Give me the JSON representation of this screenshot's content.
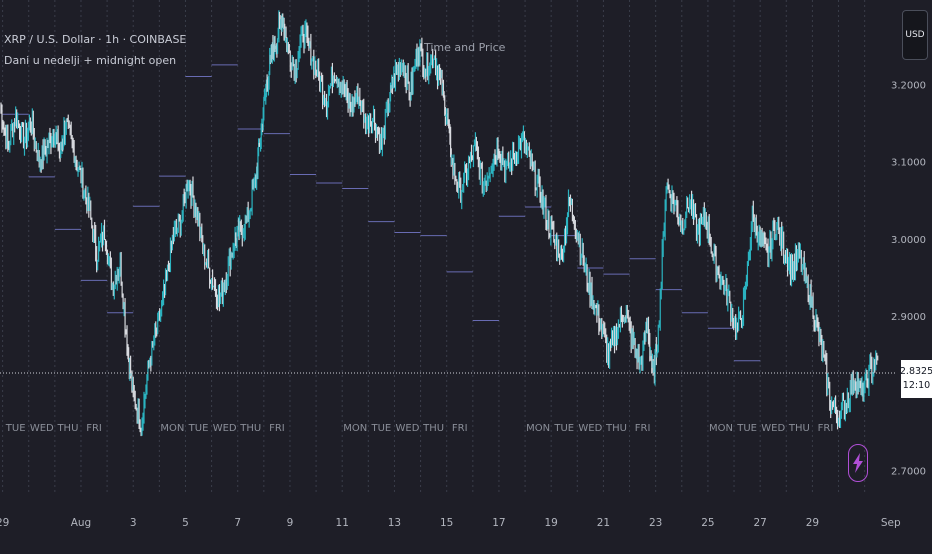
{
  "header": {
    "symbol": "XRP / U.S. Dollar · 1h · COINBASE",
    "indicator": "Dani u nedelji + midnight open",
    "annotation": "Time and Price"
  },
  "currency_label": "USD",
  "last_price": "2.8325",
  "countdown": "12:10",
  "colors": {
    "background": "#1e1e27",
    "candle": "#2bb3c0",
    "candle_alt": "#d9dbe0",
    "midnight_line": "#7b7fd6",
    "grid": "#3a3d4a",
    "price_line": "#d0d2d8",
    "bolt": "#b04fd6"
  },
  "icons": {
    "alert": "lightning-bolt-icon"
  },
  "chart_data": {
    "type": "line",
    "title": "",
    "xlabel": "",
    "ylabel": "",
    "ylim": [
      2.695,
      3.31
    ],
    "yticks": [
      "3.2000",
      "3.1000",
      "3.0000",
      "2.9000",
      "2.7000"
    ],
    "x_labels": [
      {
        "label": "29",
        "day": -3
      },
      {
        "label": "Aug",
        "day": 0
      },
      {
        "label": "3",
        "day": 2
      },
      {
        "label": "5",
        "day": 4
      },
      {
        "label": "7",
        "day": 6
      },
      {
        "label": "9",
        "day": 8
      },
      {
        "label": "11",
        "day": 10
      },
      {
        "label": "13",
        "day": 12
      },
      {
        "label": "15",
        "day": 14
      },
      {
        "label": "17",
        "day": 16
      },
      {
        "label": "19",
        "day": 18
      },
      {
        "label": "21",
        "day": 20
      },
      {
        "label": "23",
        "day": 22
      },
      {
        "label": "25",
        "day": 24
      },
      {
        "label": "27",
        "day": 26
      },
      {
        "label": "29",
        "day": 28
      },
      {
        "label": "Sep",
        "day": 31
      }
    ],
    "x_range": [
      -3.1,
      31.2
    ],
    "series": [
      {
        "x": [
          -3.1,
          -2.8,
          -2.5,
          -2.2,
          -1.9,
          -1.6,
          -1.3,
          -1.0,
          -0.8,
          -0.6,
          -0.3,
          0.0,
          0.3,
          0.6,
          0.9,
          1.2,
          1.5,
          1.8,
          2.0,
          2.3,
          2.6,
          2.9,
          3.2,
          3.5,
          3.8,
          4.1,
          4.4,
          4.7,
          5.0,
          5.3,
          5.6,
          5.9,
          6.1,
          6.4,
          6.7,
          6.9,
          7.1,
          7.3,
          7.5,
          7.7,
          7.9,
          8.2,
          8.5,
          8.8,
          9.1,
          9.4,
          9.7,
          10.0,
          10.3,
          10.6,
          10.9,
          11.2,
          11.5,
          11.8,
          12.0,
          12.3,
          12.6,
          12.9,
          13.2,
          13.5,
          13.8,
          14.0,
          14.2,
          14.5,
          14.8,
          15.1,
          15.4,
          15.7,
          16.0,
          16.3,
          16.6,
          16.9,
          17.2,
          17.5,
          17.8,
          18.1,
          18.4,
          18.7,
          19.0,
          19.3,
          19.6,
          19.9,
          20.2,
          20.5,
          20.8,
          21.1,
          21.4,
          21.7,
          21.9,
          22.1,
          22.4,
          22.7,
          23.0,
          23.3,
          23.6,
          23.9,
          24.2,
          24.5,
          24.8,
          25.1,
          25.4,
          25.7,
          26.0,
          26.3,
          26.6,
          26.9,
          27.2,
          27.5,
          27.8,
          28.1,
          28.4,
          28.7,
          29.0,
          29.3,
          29.6,
          29.9,
          30.2,
          30.5
        ],
        "values": [
          3.17,
          3.12,
          3.16,
          3.13,
          3.15,
          3.1,
          3.12,
          3.14,
          3.11,
          3.15,
          3.12,
          3.08,
          3.04,
          2.98,
          3.01,
          2.94,
          2.97,
          2.85,
          2.8,
          2.76,
          2.84,
          2.88,
          2.93,
          3.0,
          3.02,
          3.08,
          3.04,
          2.98,
          2.95,
          2.92,
          2.96,
          3.0,
          3.01,
          3.03,
          3.08,
          3.14,
          3.2,
          3.24,
          3.26,
          3.29,
          3.25,
          3.22,
          3.27,
          3.24,
          3.21,
          3.18,
          3.22,
          3.2,
          3.17,
          3.19,
          3.15,
          3.16,
          3.12,
          3.18,
          3.21,
          3.23,
          3.19,
          3.25,
          3.22,
          3.24,
          3.2,
          3.16,
          3.1,
          3.06,
          3.09,
          3.12,
          3.07,
          3.1,
          3.12,
          3.09,
          3.11,
          3.13,
          3.1,
          3.07,
          3.03,
          3.0,
          2.98,
          3.05,
          3.01,
          2.96,
          2.92,
          2.89,
          2.85,
          2.88,
          2.91,
          2.87,
          2.84,
          2.89,
          2.82,
          2.88,
          3.07,
          3.05,
          3.02,
          3.05,
          3.01,
          3.03,
          2.98,
          2.95,
          2.92,
          2.88,
          2.92,
          3.03,
          3.0,
          2.98,
          3.02,
          2.99,
          2.96,
          2.98,
          2.94,
          2.9,
          2.85,
          2.79,
          2.77,
          2.79,
          2.82,
          2.8,
          2.83,
          2.845
        ]
      }
    ],
    "midnight_open_levels": [
      3.162,
      3.081,
      3.013,
      2.947,
      2.905,
      3.043,
      3.082,
      3.211,
      3.226,
      3.143,
      3.137,
      3.084,
      3.073,
      3.066,
      3.023,
      3.009,
      3.005,
      2.958,
      2.895,
      3.03,
      3.042,
      3.005,
      2.963,
      2.955,
      2.975,
      2.935,
      2.905,
      2.885,
      2.843
    ],
    "day_labels": [
      {
        "label": "TUE",
        "day": -2.5
      },
      {
        "label": "WED",
        "day": -1.5
      },
      {
        "label": "THU",
        "day": -0.5
      },
      {
        "label": "FRI",
        "day": 0.5
      },
      {
        "label": "MON",
        "day": 3.5
      },
      {
        "label": "TUE",
        "day": 4.5
      },
      {
        "label": "WED",
        "day": 5.5
      },
      {
        "label": "THU",
        "day": 6.5
      },
      {
        "label": "FRI",
        "day": 7.5
      },
      {
        "label": "MON",
        "day": 10.5
      },
      {
        "label": "TUE",
        "day": 11.5
      },
      {
        "label": "WED",
        "day": 12.5
      },
      {
        "label": "THU",
        "day": 13.5
      },
      {
        "label": "FRI",
        "day": 14.5
      },
      {
        "label": "MON",
        "day": 17.5
      },
      {
        "label": "TUE",
        "day": 18.5
      },
      {
        "label": "WED",
        "day": 19.5
      },
      {
        "label": "THU",
        "day": 20.5
      },
      {
        "label": "FRI",
        "day": 21.5
      },
      {
        "label": "MON",
        "day": 24.5
      },
      {
        "label": "TUE",
        "day": 25.5
      },
      {
        "label": "WED",
        "day": 26.5
      },
      {
        "label": "THU",
        "day": 27.5
      },
      {
        "label": "FRI",
        "day": 28.5
      }
    ],
    "grid": true,
    "legend": "none"
  }
}
